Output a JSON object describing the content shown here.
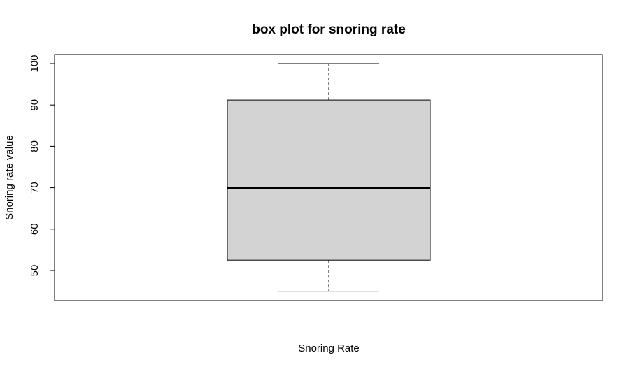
{
  "chart_data": {
    "type": "box",
    "title": "box plot for snoring rate",
    "xlabel": "Snoring Rate",
    "ylabel": "Snoring rate value",
    "yticks": [
      50,
      60,
      70,
      80,
      90,
      100
    ],
    "ylim": [
      43,
      102
    ],
    "box": {
      "min": 45,
      "q1": 52.5,
      "median": 70,
      "q3": 91.2,
      "max": 100
    },
    "grid": false,
    "legend": "none",
    "colors": {
      "box_fill": "#d3d3d3",
      "stroke": "#000000",
      "background": "#ffffff"
    }
  }
}
